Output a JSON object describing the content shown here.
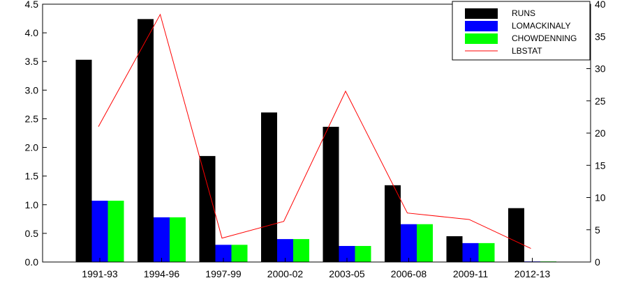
{
  "chart_data": {
    "type": "bar",
    "title": "",
    "xlabel": "",
    "ylabel": "",
    "y2label": "",
    "categories": [
      "1991-93",
      "1994-96",
      "1997-99",
      "2000-02",
      "2003-05",
      "2006-08",
      "2009-11",
      "2012-13"
    ],
    "ylim": [
      0,
      4.5
    ],
    "yticks": [
      "0.0",
      "0.5",
      "1.0",
      "1.5",
      "2.0",
      "2.5",
      "3.0",
      "3.5",
      "4.0",
      "4.5"
    ],
    "y2lim": [
      0,
      40
    ],
    "y2ticks": [
      "0",
      "5",
      "10",
      "15",
      "20",
      "25",
      "30",
      "35",
      "40"
    ],
    "grid": false,
    "legend_position": "top-right",
    "series": [
      {
        "name": "RUNS",
        "kind": "bar",
        "axis": "left",
        "color": "#000000",
        "values": [
          3.53,
          4.24,
          1.85,
          2.61,
          2.36,
          1.34,
          0.45,
          0.94
        ]
      },
      {
        "name": "LOMACKINALY",
        "kind": "bar",
        "axis": "left",
        "color": "#0000ff",
        "values": [
          1.07,
          0.78,
          0.3,
          0.4,
          0.28,
          0.66,
          0.33,
          0.01
        ]
      },
      {
        "name": "CHOWDENNING",
        "kind": "bar",
        "axis": "left",
        "color": "#00ff00",
        "values": [
          1.07,
          0.78,
          0.3,
          0.4,
          0.28,
          0.66,
          0.33,
          0.01
        ]
      },
      {
        "name": "LBSTAT",
        "kind": "line",
        "axis": "right",
        "color": "#ff0000",
        "values": [
          21.0,
          38.4,
          3.7,
          6.3,
          26.5,
          7.6,
          6.6,
          2.1
        ]
      }
    ]
  }
}
